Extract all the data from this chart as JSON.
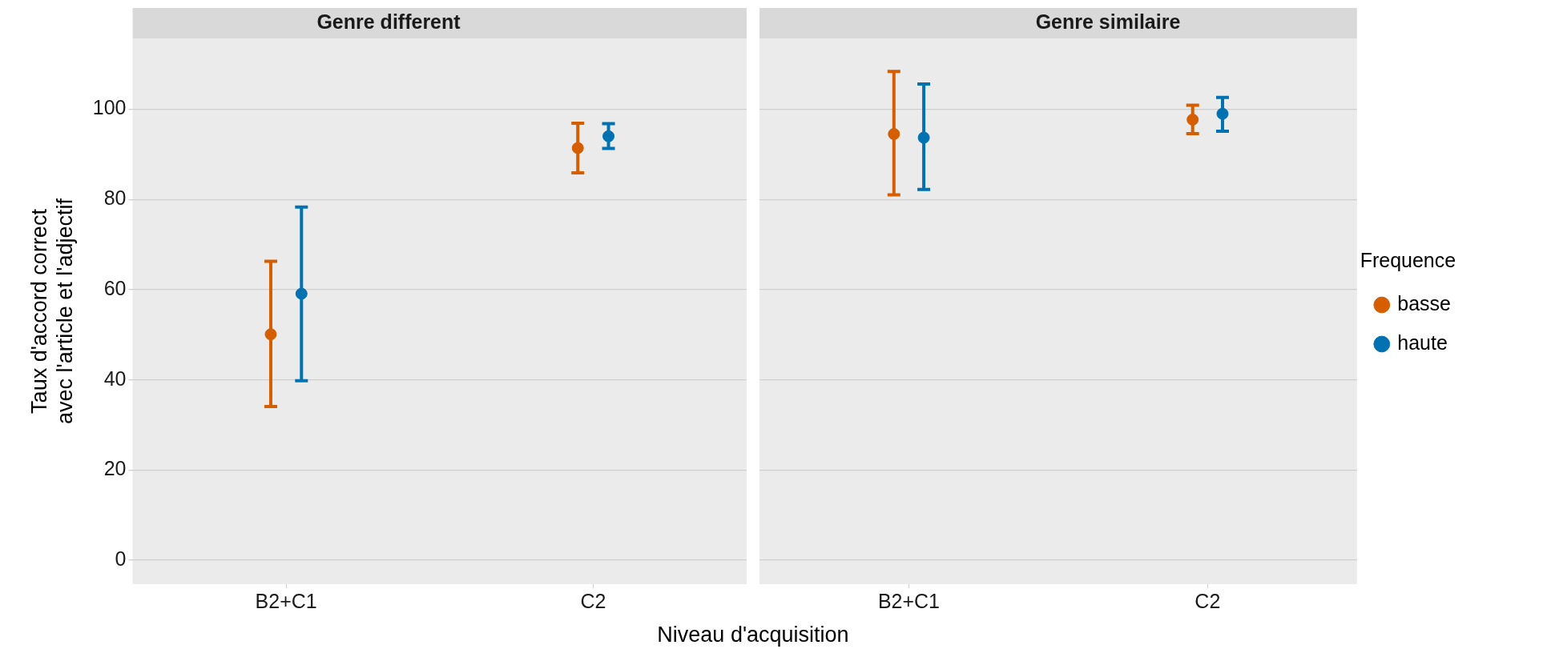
{
  "chart_data": [
    {
      "type": "scatter",
      "title": "Genre different",
      "ylabel": "Taux d'accord correct\navec l'article et l'adjectif",
      "xlabel": "Niveau d'acquisition",
      "categories": [
        "B2+C1",
        "C2"
      ],
      "series": [
        {
          "color": "#d55e00",
          "values": [
            50.1,
            91.4
          ],
          "errors": [
            [
              34.1,
              66.3
            ],
            [
              85.9,
              96.9
            ]
          ]
        },
        {
          "color": "#0072b2",
          "values": [
            59.1,
            94.0
          ],
          "errors": [
            [
              39.8,
              78.3
            ],
            [
              91.3,
              96.8
            ]
          ]
        }
      ],
      "ylim": [
        -5.3,
        115.7
      ],
      "yticks": [
        0,
        20,
        40,
        60,
        80,
        100
      ],
      "grid": "y",
      "marker": "circle",
      "legend": false
    },
    {
      "type": "scatter",
      "title": "Genre similaire",
      "categories": [
        "B2+C1",
        "C2"
      ],
      "legend_title": "Frequence",
      "series": [
        {
          "name": "basse",
          "color": "#d55e00",
          "values": [
            94.5,
            97.7
          ],
          "errors": [
            [
              81.0,
              108.4
            ],
            [
              94.6,
              100.9
            ]
          ]
        },
        {
          "name": "haute",
          "color": "#0072b2",
          "values": [
            93.7,
            99.0
          ],
          "errors": [
            [
              82.2,
              105.6
            ],
            [
              95.1,
              102.6
            ]
          ]
        }
      ],
      "ylim": [
        -5.3,
        115.7
      ],
      "yticks": [
        0,
        20,
        40,
        60,
        80,
        100
      ],
      "grid": "y",
      "marker": "circle",
      "legend": "right",
      "tick_labels": "x"
    }
  ]
}
